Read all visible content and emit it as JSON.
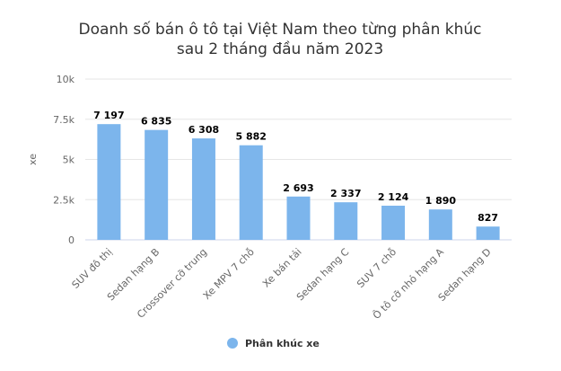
{
  "chart_data": {
    "type": "bar",
    "title_line1": "Doanh số bán ô tô tại Việt Nam theo từng phân khúc",
    "title_line2": "sau 2 tháng đầu năm 2023",
    "xlabel": "",
    "ylabel": "xe",
    "ylim": [
      0,
      10000
    ],
    "yticks": [
      {
        "value": 0,
        "label": "0"
      },
      {
        "value": 2500,
        "label": "2.5k"
      },
      {
        "value": 5000,
        "label": "5k"
      },
      {
        "value": 7500,
        "label": "7.5k"
      },
      {
        "value": 10000,
        "label": "10k"
      }
    ],
    "grid": true,
    "legend_position": "bottom-center",
    "series": [
      {
        "name": "Phân khúc xe",
        "color": "#7cb5ec",
        "categories": [
          "SUV đô thị",
          "Sedan hạng B",
          "Crossover cỡ trung",
          "Xe MPV 7 chỗ",
          "Xe bán tải",
          "Sedan hạng C",
          "SUV 7 chỗ",
          "Ô tô cỡ nhỏ hạng A",
          "Sedan hạng D"
        ],
        "values": [
          7197,
          6835,
          6308,
          5882,
          2693,
          2337,
          2124,
          1890,
          827
        ],
        "value_labels": [
          "7 197",
          "6 835",
          "6 308",
          "5 882",
          "2 693",
          "2 337",
          "2 124",
          "1 890",
          "827"
        ]
      }
    ]
  }
}
